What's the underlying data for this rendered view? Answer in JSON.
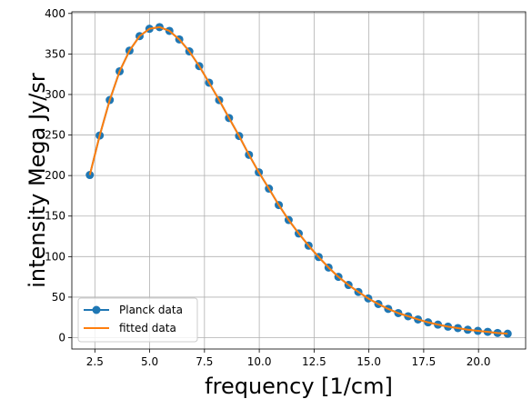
{
  "chart_data": {
    "type": "line",
    "title": "",
    "xlabel": "frequency [1/cm]",
    "ylabel": "intensity Mega Jy/sr",
    "xlim": [
      1.45,
      22.15
    ],
    "ylim": [
      -14,
      402
    ],
    "xticks": [
      2.5,
      5.0,
      7.5,
      10.0,
      12.5,
      15.0,
      17.5,
      20.0
    ],
    "xtick_labels": [
      "2.5",
      "5.0",
      "7.5",
      "10.0",
      "12.5",
      "15.0",
      "17.5",
      "20.0"
    ],
    "yticks": [
      0,
      50,
      100,
      150,
      200,
      250,
      300,
      350,
      400
    ],
    "ytick_labels": [
      "0",
      "50",
      "100",
      "150",
      "200",
      "250",
      "300",
      "350",
      "400"
    ],
    "grid": true,
    "legend_position": "lower-left",
    "x": [
      2.27,
      2.72,
      3.18,
      3.63,
      4.08,
      4.54,
      4.99,
      5.45,
      5.9,
      6.35,
      6.81,
      7.26,
      7.71,
      8.17,
      8.62,
      9.08,
      9.53,
      9.98,
      10.44,
      10.89,
      11.34,
      11.8,
      12.25,
      12.71,
      13.16,
      13.61,
      14.07,
      14.52,
      14.97,
      15.43,
      15.88,
      16.34,
      16.79,
      17.24,
      17.7,
      18.15,
      18.61,
      19.06,
      19.51,
      19.97,
      20.42,
      20.87,
      21.33
    ],
    "series": [
      {
        "name": "Planck data",
        "style": "line-marker",
        "color": "#1f77b4",
        "values": [
          200.7,
          249.4,
          293.2,
          328.6,
          354.1,
          372.0,
          381.1,
          383.1,
          378.5,
          368.0,
          353.2,
          335.0,
          314.6,
          293.1,
          271.0,
          248.8,
          225.6,
          204.0,
          183.9,
          163.6,
          145.2,
          128.5,
          113.5,
          99.5,
          86.5,
          75.0,
          65.0,
          56.4,
          48.4,
          41.5,
          35.5,
          30.3,
          26.4,
          22.5,
          18.9,
          16.1,
          13.6,
          11.8,
          9.8,
          8.4,
          7.2,
          5.8,
          4.9
        ]
      },
      {
        "name": "fitted data",
        "style": "line",
        "color": "#ff7f0e",
        "values": [
          200.7,
          249.4,
          293.2,
          328.6,
          354.1,
          372.0,
          381.1,
          383.1,
          378.5,
          368.0,
          353.2,
          335.0,
          314.6,
          293.1,
          271.0,
          248.8,
          225.6,
          204.0,
          183.9,
          163.6,
          145.2,
          128.5,
          113.5,
          99.5,
          86.5,
          75.0,
          65.0,
          56.4,
          48.4,
          41.5,
          35.5,
          30.3,
          26.4,
          22.5,
          18.9,
          16.1,
          13.6,
          11.8,
          9.8,
          8.4,
          7.2,
          5.8,
          4.9
        ]
      }
    ]
  }
}
